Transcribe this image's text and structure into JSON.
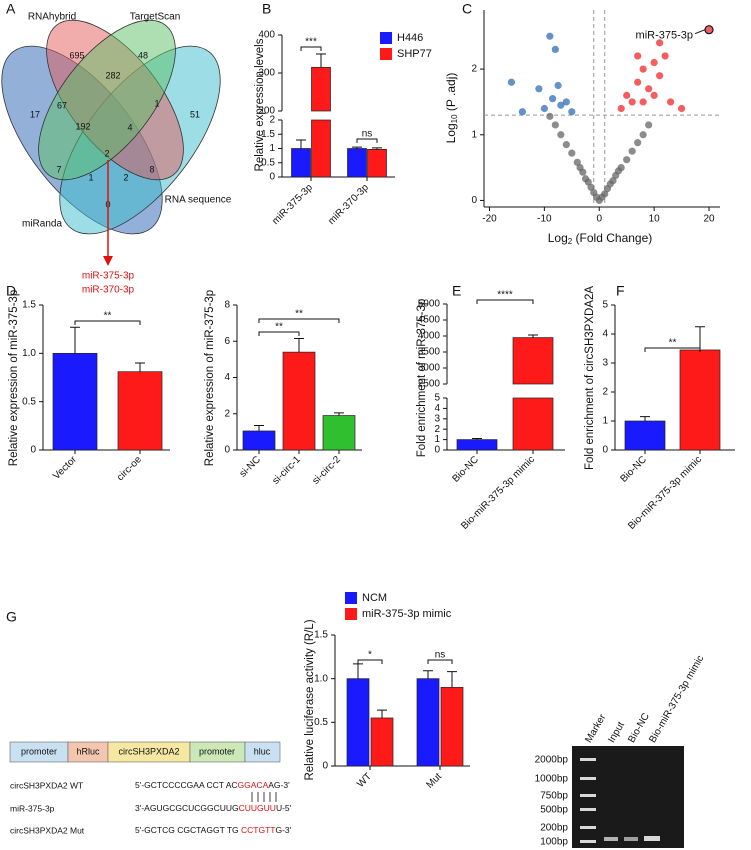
{
  "panel_labels": [
    "A",
    "B",
    "C",
    "D",
    "E",
    "F",
    "G"
  ],
  "venn": {
    "sets": [
      "RNAhybrid",
      "TargetScan",
      "miRanda",
      "RNA sequence"
    ],
    "counts": [
      "17",
      "67",
      "695",
      "282",
      "48",
      "1",
      "51",
      "192",
      "4",
      "7",
      "2",
      "8",
      "1",
      "2",
      "0"
    ],
    "result": [
      "miR-375-3p",
      "miR-370-3p"
    ]
  },
  "chart_data": [
    {
      "type": "bar",
      "ylabel": "Relative expression levels",
      "categories": [
        "miR-375-3p",
        "miR-370-3p"
      ],
      "series": [
        {
          "name": "H446",
          "color": "#1a1aff",
          "values": [
            1,
            1
          ],
          "errors": [
            0.3,
            0.05
          ]
        },
        {
          "name": "SHP77",
          "color": "#ff1a1a",
          "values": [
            315,
            0.97
          ],
          "errors": [
            35,
            0.05
          ]
        }
      ],
      "y_segments": [
        {
          "ylim": [
            0,
            2
          ],
          "yticks": [
            0,
            0.5,
            1,
            1.5,
            2
          ]
        },
        {
          "ylim": [
            200,
            400
          ],
          "yticks": [
            200,
            300,
            400
          ]
        }
      ],
      "significance": [
        "***",
        "ns"
      ]
    },
    {
      "type": "scatter",
      "ylabel": [
        "Log",
        "10",
        " (P .adj)"
      ],
      "xlabel": [
        "Log",
        "2",
        " (Fold Change)"
      ],
      "xlim": [
        -21,
        22
      ],
      "xticks": [
        -20,
        -10,
        0,
        10,
        20
      ],
      "ylim": [
        -0.1,
        2.9
      ],
      "yticks": [
        0,
        1,
        2
      ],
      "thresholds": {
        "x": [
          -1,
          1
        ],
        "y": 1.3
      },
      "annotation": "miR-375-3p",
      "series": [
        {
          "color": "#666666",
          "x": [
            -9,
            -8,
            -7,
            -6,
            -5,
            -4,
            -3,
            -2,
            -1.5,
            -1,
            -0.5,
            0,
            0.5,
            1,
            1.5,
            2,
            3,
            4,
            5,
            6,
            7,
            8,
            9,
            -2.5,
            2.5,
            -3.5,
            3.5
          ],
          "values": [
            1.28,
            1.15,
            1.0,
            0.85,
            0.72,
            0.58,
            0.43,
            0.28,
            0.2,
            0.12,
            0.05,
            0,
            0.05,
            0.1,
            0.18,
            0.25,
            0.38,
            0.5,
            0.62,
            0.75,
            0.88,
            1.0,
            1.15,
            0.33,
            0.3,
            0.5,
            0.45
          ]
        },
        {
          "color": "#2e6db4",
          "x": [
            -16,
            -14,
            -11,
            -10,
            -9,
            -8.5,
            -8,
            -7.5,
            -7,
            -6,
            -5
          ],
          "values": [
            1.8,
            1.35,
            1.7,
            1.4,
            2.5,
            1.55,
            2.3,
            1.75,
            1.45,
            1.5,
            1.35
          ]
        },
        {
          "color": "#f02828",
          "x": [
            4,
            5,
            6,
            7,
            7,
            8,
            8,
            9,
            10,
            10,
            11,
            11,
            12,
            13,
            15,
            20
          ],
          "values": [
            1.4,
            1.6,
            1.5,
            1.8,
            2.2,
            2.0,
            1.5,
            1.7,
            2.1,
            1.6,
            2.4,
            1.9,
            2.2,
            1.5,
            1.4,
            2.6
          ]
        }
      ]
    },
    {
      "type": "bar",
      "ylabel": "Relative expression of miR-375-3p",
      "categories": [
        "Vector",
        "circ-oe"
      ],
      "values": [
        1,
        0.81
      ],
      "errors": [
        0.27,
        0.09
      ],
      "colors": [
        "#1a1aff",
        "#ff1a1a"
      ],
      "ylim": [
        0,
        1.5
      ],
      "yticks": [
        0,
        0.5,
        {
          "value": 1,
          "label": "1.0"
        },
        1.5
      ],
      "significance": [
        "**"
      ]
    },
    {
      "type": "bar",
      "ylabel": "Relative expression of miR-375-3p",
      "categories": [
        "si-NC",
        "si-circ-1",
        "si-circ-2"
      ],
      "values": [
        1.05,
        5.4,
        1.9
      ],
      "errors": [
        0.3,
        0.75,
        0.15
      ],
      "colors": [
        "#1a1aff",
        "#ff1a1a",
        "#2fbf2f"
      ],
      "ylim": [
        0,
        8
      ],
      "yticks": [
        0,
        2,
        4,
        6,
        8
      ],
      "significance": [
        "**",
        "**"
      ]
    },
    {
      "type": "bar",
      "ylabel": "Fold enrichment of miR-375-3p",
      "categories": [
        "Bio-NC",
        "Bio-miR-375-3p mimic"
      ],
      "values": [
        1,
        3950
      ],
      "errors": [
        0.1,
        80
      ],
      "colors": [
        "#1a1aff",
        "#ff1a1a"
      ],
      "y_segments": [
        {
          "ylim": [
            0,
            5
          ],
          "yticks": [
            0,
            1,
            2,
            3,
            4,
            5
          ]
        },
        {
          "ylim": [
            2500,
            5000
          ],
          "yticks": [
            2500,
            3000,
            3500,
            4000,
            4500,
            5000
          ]
        }
      ],
      "significance": [
        "****"
      ]
    },
    {
      "type": "bar",
      "ylabel": "Fold enrichment of circSH3PXDA2A",
      "categories": [
        "Bio-NC",
        "Bio-miR-375-3p mimic"
      ],
      "values": [
        1,
        3.45
      ],
      "errors": [
        0.15,
        0.8
      ],
      "colors": [
        "#1a1aff",
        "#ff1a1a"
      ],
      "ylim": [
        0,
        5
      ],
      "yticks": [
        0,
        1,
        2,
        3,
        4,
        5
      ],
      "significance": [
        "**"
      ]
    },
    {
      "type": "bar",
      "ylabel": "Relative luciferase activity (R/L)",
      "categories": [
        "WT",
        "Mut"
      ],
      "series": [
        {
          "name": "NCM",
          "color": "#1a1aff",
          "values": [
            1,
            1
          ],
          "errors": [
            0.17,
            0.09
          ]
        },
        {
          "name": "miR-375-3p mimic",
          "color": "#ff1a1a",
          "values": [
            0.55,
            0.9
          ],
          "errors": [
            0.09,
            0.18
          ]
        }
      ],
      "ylim": [
        0,
        1.5
      ],
      "yticks": [
        0,
        0.5,
        {
          "value": 1,
          "label": "1.0"
        },
        1.5
      ],
      "significance": [
        "*",
        "ns"
      ]
    }
  ],
  "construct": {
    "blocks": [
      "promoter",
      "hRluc",
      "circSH3PXDA2",
      "promoter",
      "hluc"
    ],
    "rows": [
      {
        "label": "circSH3PXDA2 WT",
        "seq": [
          "5'-GCTCCCCGAA CCT AC",
          "GGACA",
          "AG-3'"
        ]
      },
      {
        "label": "miR-375-3p",
        "seq": [
          "3'-AGUGCGCUCGGCUUG",
          "CUUGUU",
          "U-5'"
        ]
      },
      {
        "label": "circSH3PXDA2 Mut",
        "seq": [
          "5'-GCTCG CGCTAGGT TG ",
          "CCTGTT",
          "G-3'"
        ]
      }
    ]
  },
  "gel": {
    "lanes": [
      "Marker",
      "Input",
      "Bio-NC",
      "Bio-miR-375-3p mimic"
    ],
    "ladder": [
      "2000bp",
      "1000bp",
      "750bp",
      "500bp",
      "200bp",
      "100bp"
    ]
  }
}
